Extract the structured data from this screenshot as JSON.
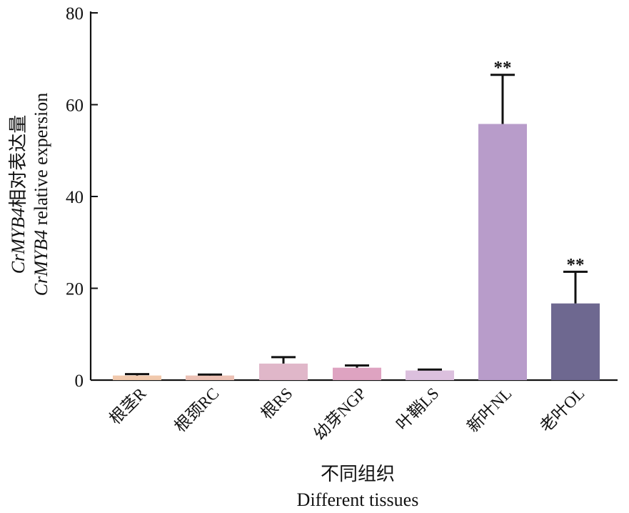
{
  "chart_data": {
    "type": "bar",
    "categories": [
      "根茎R",
      "根颈RC",
      "根RS",
      "幼芽NGP",
      "叶鞘LS",
      "新叶NL",
      "老叶OL"
    ],
    "values": [
      1.0,
      1.0,
      3.6,
      2.7,
      2.1,
      55.8,
      16.7
    ],
    "error_upper": [
      1.3,
      1.2,
      5.0,
      3.2,
      2.3,
      66.5,
      23.6
    ],
    "significance": [
      "",
      "",
      "",
      "",
      "",
      "**",
      "**"
    ],
    "colors": [
      "#f1c9ad",
      "#ecc1b5",
      "#e0b7c9",
      "#dea3c1",
      "#dcc0de",
      "#b89cca",
      "#6e6890"
    ],
    "ylim": [
      0,
      80
    ],
    "yticks": [
      0,
      20,
      40,
      60,
      80
    ],
    "xlabel_zh": "不同组织",
    "xlabel_en": "Different tissues",
    "ylabel_line1_gene": "CrMYB4",
    "ylabel_line1_rest": "相对表达量",
    "ylabel_line2_gene": "CrMYB4",
    "ylabel_line2_rest": " relative expersion",
    "grid": false
  }
}
